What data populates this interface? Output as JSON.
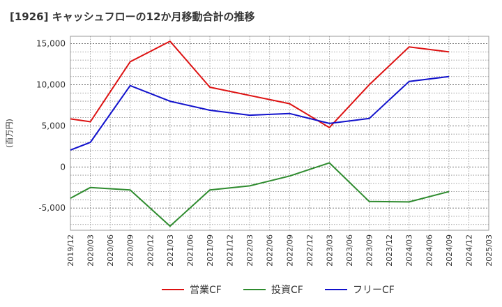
{
  "chart_data": {
    "type": "line",
    "title": "[1926]  キャッシュフローの12か月移動合計の推移",
    "ylabel": "(百万円)",
    "ylim": [
      -7700,
      15900
    ],
    "yticks": [
      -5000,
      0,
      5000,
      10000,
      15000
    ],
    "ytick_labels": [
      "-5,000",
      "0",
      "5,000",
      "10,000",
      "15,000"
    ],
    "categories": [
      "2019/12",
      "2020/03",
      "2020/06",
      "2020/09",
      "2020/12",
      "2021/03",
      "2021/06",
      "2021/09",
      "2021/12",
      "2022/03",
      "2022/06",
      "2022/09",
      "2022/12",
      "2023/03",
      "2023/06",
      "2023/09",
      "2023/12",
      "2024/03",
      "2024/06",
      "2024/09",
      "2024/12",
      "2025/03"
    ],
    "grid": true,
    "legend_position": "bottom",
    "series": [
      {
        "name": "営業CF",
        "color": "#dd1111",
        "values": [
          5850,
          5500,
          null,
          12800,
          null,
          15300,
          null,
          9700,
          null,
          null,
          null,
          7700,
          null,
          4800,
          null,
          10000,
          null,
          14600,
          null,
          14000,
          null,
          null
        ]
      },
      {
        "name": "投資CF",
        "color": "#2e8b2e",
        "values": [
          -3800,
          -2500,
          null,
          -2800,
          null,
          -7200,
          null,
          -2800,
          null,
          -2300,
          null,
          -1100,
          null,
          500,
          null,
          -4200,
          null,
          -4250,
          null,
          -3000,
          null,
          null
        ]
      },
      {
        "name": "フリーCF",
        "color": "#1111cc",
        "values": [
          2050,
          3000,
          null,
          9900,
          null,
          8000,
          null,
          6900,
          null,
          6300,
          null,
          6500,
          null,
          5300,
          null,
          5900,
          null,
          10400,
          null,
          11000,
          null,
          null
        ]
      }
    ]
  }
}
